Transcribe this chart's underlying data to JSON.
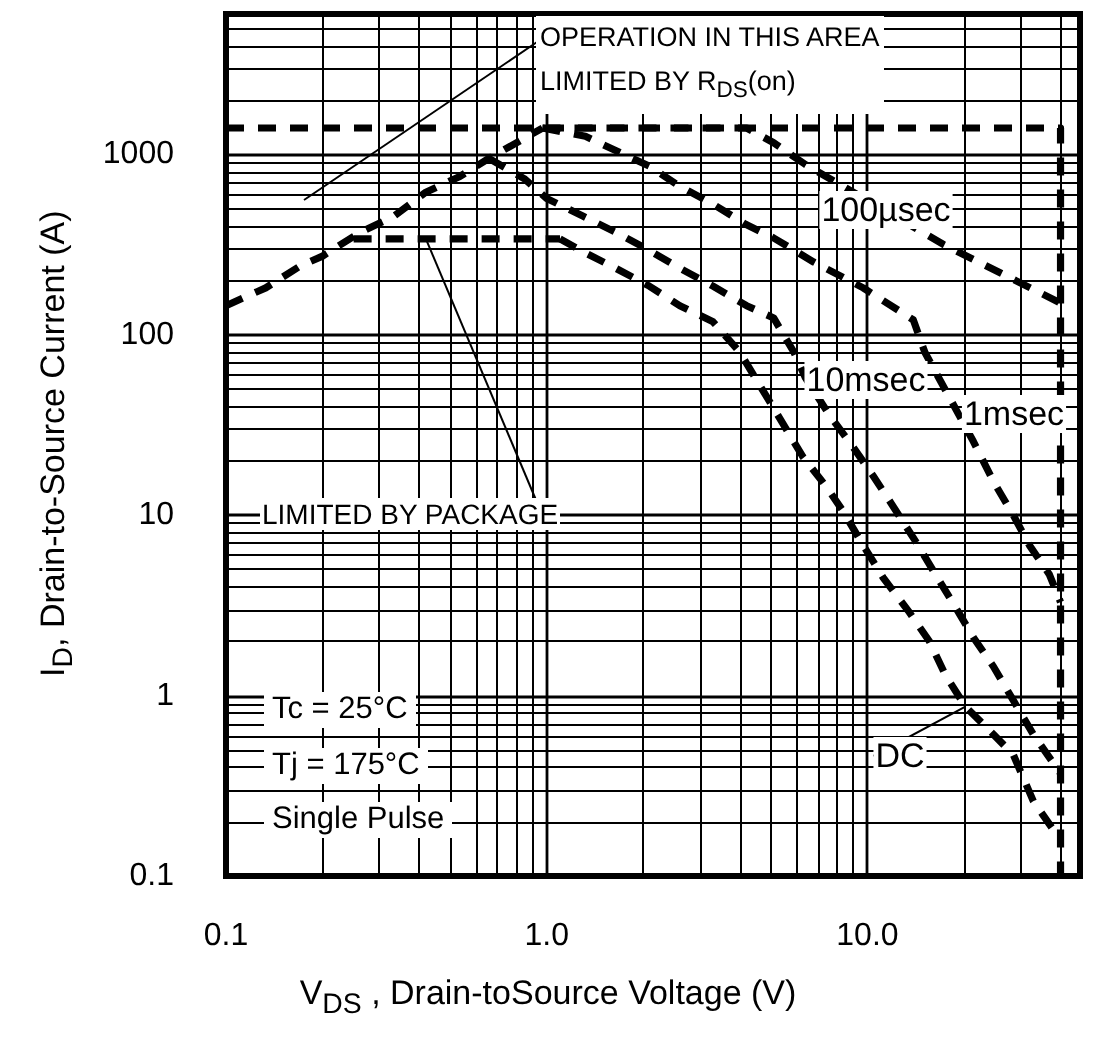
{
  "chart_data": {
    "type": "line",
    "xlabel": "V$_{DS}$ , Drain-toSource Voltage (V)",
    "ylabel": "I$_{D}$, Drain-to-Source Current (A)",
    "log": "xy",
    "xlim": [
      0.1,
      46
    ],
    "ylim": [
      0.1,
      6000
    ],
    "xticks": [
      0.1,
      {
        "value": 1,
        "label": "1.0"
      },
      {
        "value": 10,
        "label": "10.0"
      }
    ],
    "yticks": [
      0.1,
      1,
      10,
      100,
      1000
    ],
    "grid": true,
    "marker": "none",
    "line_style": "dashed",
    "annotations": [
      "OPERATION IN THIS AREA\nLIMITED BY R$_{DS}$(on)",
      {
        "text": "LIMITED BY PACKAGE",
        "x": 0.42,
        "y": 340
      },
      "Tc = 25°C",
      "Tj = 175°C",
      "Single Pulse"
    ],
    "series": [
      {
        "color": "#000000",
        "x": [
          0.1,
          40,
          40
        ],
        "values": [
          1400,
          1400,
          0.1
        ]
      },
      {
        "color": "#000000",
        "x": [
          0.1,
          0.133,
          0.17,
          0.2,
          0.262,
          0.334,
          0.42,
          0.536,
          0.66,
          0.85,
          0.97
        ],
        "values": [
          145,
          182,
          240,
          273,
          370,
          454,
          617,
          755,
          950,
          1225,
          1400
        ]
      },
      {
        "color": "#000000",
        "x": [
          0.25,
          1.1
        ],
        "values": [
          340,
          340
        ]
      },
      {
        "name": "100µsec",
        "color": "#000000",
        "x": [
          0.97,
          4.2,
          5.1,
          6.4,
          17.3,
          40
        ],
        "values": [
          1400,
          1400,
          1160,
          880,
          316,
          150
        ]
      },
      {
        "name": "1msec",
        "color": "#000000",
        "x": [
          0.97,
          1.32,
          1.64,
          2.09,
          2.6,
          3.3,
          4.17,
          5.1,
          6.8,
          9.7,
          13.9,
          15.1,
          21.4,
          24.7,
          28.5,
          32,
          36.9,
          40
        ],
        "values": [
          1400,
          1260,
          1050,
          860,
          665,
          530,
          410,
          344,
          253,
          182,
          121,
          80,
          25.6,
          15.4,
          10,
          6.8,
          4.7,
          3.3
        ]
      },
      {
        "name": "10msec",
        "color": "#000000",
        "x": [
          0.66,
          0.85,
          1.0,
          1.3,
          1.64,
          2.03,
          2.6,
          3.3,
          4.2,
          5.1,
          5.9,
          6.4,
          7.6,
          9.0,
          10.4,
          12.1,
          14.1,
          16.3,
          18.8,
          21.4,
          24.7,
          28.5,
          32.9,
          40
        ],
        "values": [
          950,
          735,
          570,
          454,
          370,
          302,
          234,
          186,
          145,
          124,
          80,
          58,
          36,
          24,
          16.6,
          11,
          7.2,
          4.7,
          3.1,
          2.1,
          1.45,
          0.94,
          0.61,
          0.37
        ]
      },
      {
        "name": "DC",
        "color": "#000000",
        "x": [
          1.1,
          1.3,
          1.64,
          2.09,
          2.6,
          3.3,
          4.0,
          6.3,
          7.4,
          8.4,
          9.7,
          11.2,
          13.5,
          15.6,
          17.5,
          20.2,
          24.7,
          28.5,
          32.9,
          38
        ],
        "values": [
          340,
          288,
          234,
          186,
          145,
          118,
          80,
          21,
          14.6,
          10.5,
          6.8,
          4.5,
          2.9,
          2.0,
          1.3,
          0.87,
          0.61,
          0.47,
          0.26,
          0.18
        ]
      }
    ]
  }
}
